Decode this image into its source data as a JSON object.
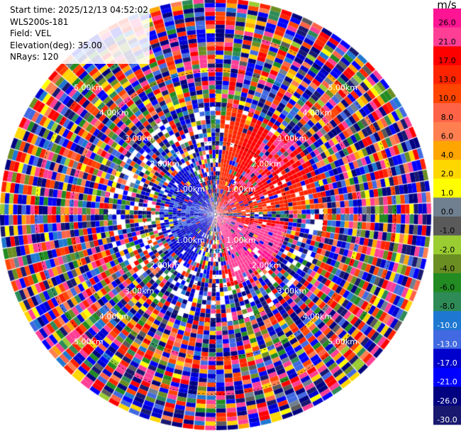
{
  "info": {
    "start_time": "Start time: 2025/12/13 04:52:02",
    "site": "WLS200s-181",
    "field": "Field: VEL",
    "elevation": "Elevation(deg): 35.00",
    "nrays": "NRays: 120"
  },
  "colorbar": {
    "unit": "m/s",
    "ticks": [
      "26.0",
      "21.0",
      "17.0",
      "13.0",
      "10.0",
      "8.0",
      "6.0",
      "4.0",
      "2.0",
      "1.0",
      "0.0",
      "-1.0",
      "-2.0",
      "-4.0",
      "-6.0",
      "-8.0",
      "-10.0",
      "-13.0",
      "-17.0",
      "-21.0",
      "-26.0",
      "-30.0"
    ],
    "colors": [
      "#ff1493",
      "#ff3e96",
      "#ff0000",
      "#ff2400",
      "#ff4500",
      "#ff6347",
      "#ff7f50",
      "#ffa500",
      "#ffd700",
      "#ffff00",
      "#708090",
      "#5a5a5a",
      "#9acd32",
      "#6b8e23",
      "#228b22",
      "#2e8b57",
      "#1e78d2",
      "#4169e1",
      "#0000cd",
      "#0000ff",
      "#000080",
      "#191970"
    ]
  },
  "rings": {
    "labels": [
      "1.00km",
      "2.00km",
      "3.00km",
      "4.00km",
      "5.00km"
    ]
  },
  "chart_data": {
    "type": "heatmap",
    "subtype": "radar PPI (polar plot of radial velocity)",
    "field": "VEL",
    "units": "m/s",
    "elevation_deg": 35.0,
    "n_rays": 120,
    "range_rings_km": [
      1,
      2,
      3,
      4,
      5
    ],
    "color_scale_m_s": [
      -30,
      -26,
      -21,
      -17,
      -13,
      -10,
      -8,
      -6,
      -4,
      -2,
      -1,
      0,
      1,
      2,
      4,
      6,
      8,
      10,
      13,
      17,
      21,
      26
    ],
    "clutter_range_km": [
      3.0,
      5.9
    ],
    "coherent_sectors": [
      {
        "azimuth_from_deg": 6,
        "azimuth_to_deg": 84,
        "range_km": [
          0,
          3.0
        ],
        "velocity_m_s_approx": [
          4,
          21
        ]
      },
      {
        "azimuth_from_deg": 96,
        "azimuth_to_deg": 170,
        "range_km": [
          0,
          2.0
        ],
        "velocity_m_s_approx": [
          13,
          26
        ]
      },
      {
        "azimuth_from_deg": 205,
        "azimuth_to_deg": 330,
        "range_km": [
          0,
          1.5
        ],
        "velocity_m_s_approx": [
          -21,
          -13
        ]
      }
    ]
  }
}
